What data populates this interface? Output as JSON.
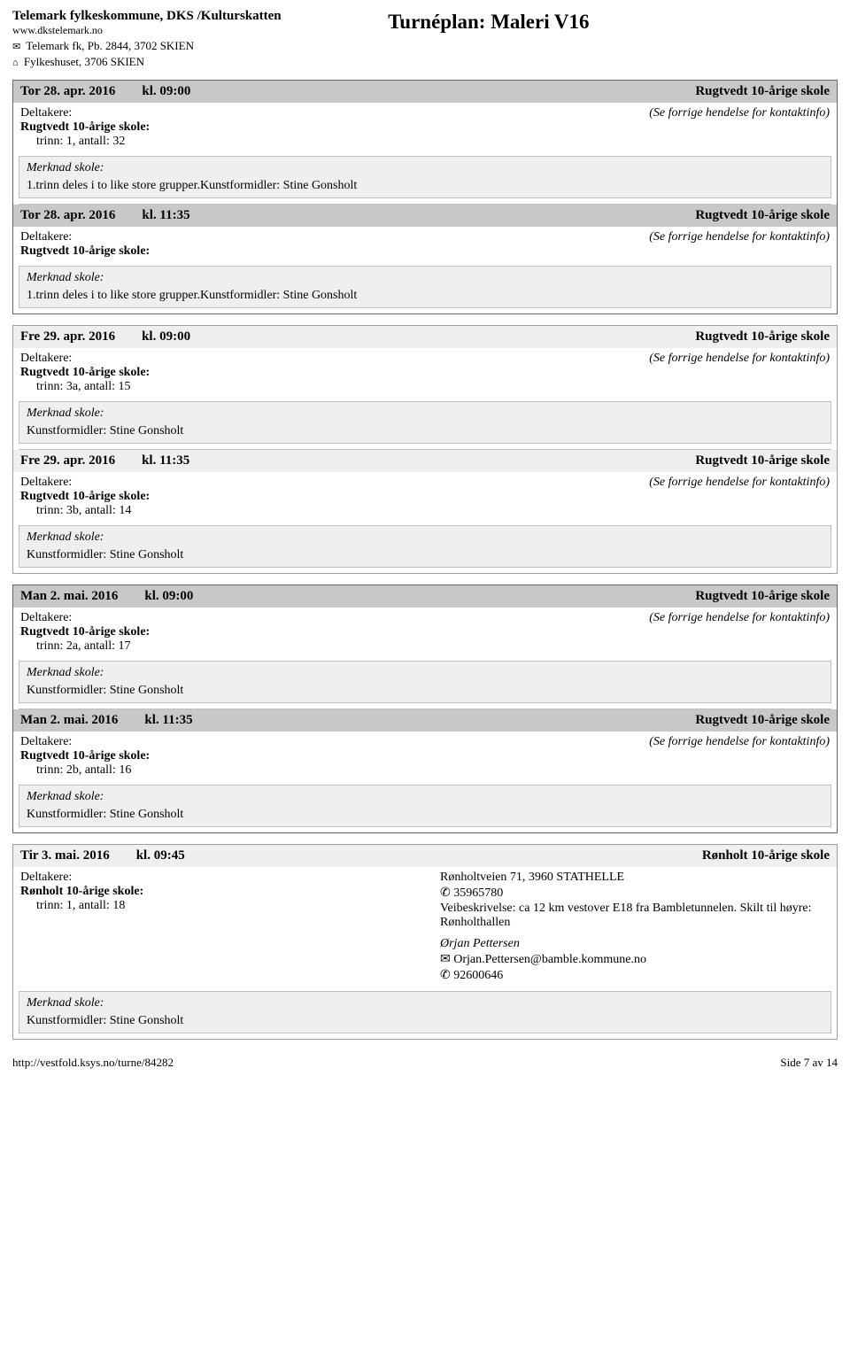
{
  "header": {
    "org_name": "Telemark fylkeskommune, DKS /Kulturskatten",
    "url": "www.dkstelemark.no",
    "addr1_icon": "✉",
    "addr1": "Telemark fk, Pb. 2844, 3702 SKIEN",
    "addr2_icon": "⌂",
    "addr2": "Fylkeshuset, 3706 SKIEN",
    "page_title": "Turnéplan: Maleri V16"
  },
  "labels": {
    "deltakere": "Deltakere:",
    "merknad": "Merknad skole:",
    "see_prev": "(Se forrige hendelse for kontaktinfo)"
  },
  "groups": [
    {
      "border": "dark",
      "events": [
        {
          "header_style": "dark",
          "date": "Tor 28. apr. 2016",
          "time": "kl. 09:00",
          "venue": "Rugtvedt 10-årige skole",
          "school": "Rugtvedt 10-årige skole:",
          "trinn": "trinn: 1, antall: 32",
          "right_type": "see_prev",
          "merknad_body": "1.trinn deles i to like store grupper.Kunstformidler: Stine Gonsholt"
        },
        {
          "header_style": "dark",
          "date": "Tor 28. apr. 2016",
          "time": "kl. 11:35",
          "venue": "Rugtvedt 10-årige skole",
          "school": "Rugtvedt 10-årige skole:",
          "trinn": "",
          "right_type": "see_prev",
          "merknad_body": "1.trinn deles i to like store grupper.Kunstformidler: Stine Gonsholt"
        }
      ]
    },
    {
      "border": "light",
      "events": [
        {
          "header_style": "light",
          "date": "Fre 29. apr. 2016",
          "time": "kl. 09:00",
          "venue": "Rugtvedt 10-årige skole",
          "school": "Rugtvedt 10-årige skole:",
          "trinn": "trinn: 3a, antall: 15",
          "right_type": "see_prev",
          "merknad_body": "Kunstformidler: Stine Gonsholt"
        },
        {
          "header_style": "light",
          "date": "Fre 29. apr. 2016",
          "time": "kl. 11:35",
          "venue": "Rugtvedt 10-årige skole",
          "school": "Rugtvedt 10-årige skole:",
          "trinn": "trinn: 3b, antall: 14",
          "right_type": "see_prev",
          "merknad_body": "Kunstformidler: Stine Gonsholt"
        }
      ]
    },
    {
      "border": "dark",
      "events": [
        {
          "header_style": "dark",
          "date": "Man 2. mai. 2016",
          "time": "kl. 09:00",
          "venue": "Rugtvedt 10-årige skole",
          "school": "Rugtvedt 10-årige skole:",
          "trinn": "trinn: 2a, antall: 17",
          "right_type": "see_prev",
          "merknad_body": "Kunstformidler: Stine Gonsholt"
        },
        {
          "header_style": "dark",
          "date": "Man 2. mai. 2016",
          "time": "kl. 11:35",
          "venue": "Rugtvedt 10-årige skole",
          "school": "Rugtvedt 10-årige skole:",
          "trinn": "trinn: 2b, antall: 16",
          "right_type": "see_prev",
          "merknad_body": "Kunstformidler: Stine Gonsholt"
        }
      ]
    },
    {
      "border": "light",
      "events": [
        {
          "header_style": "light",
          "date": "Tir 3. mai. 2016",
          "time": "kl. 09:45",
          "venue": "Rønholt 10-årige skole",
          "school": "Rønholt 10-årige skole:",
          "trinn": "trinn: 1, antall: 18",
          "right_type": "contact",
          "contact": {
            "address": "Rønholtveien 71, 3960 STATHELLE",
            "phone_icon": "✆",
            "phone1": "35965780",
            "directions": "Veibeskrivelse: ca 12 km vestover E18 fra Bambletunnelen. Skilt til høyre: Rønholthallen",
            "person": "Ørjan Pettersen",
            "email_icon": "✉",
            "email": "Orjan.Pettersen@bamble.kommune.no",
            "phone2_icon": "✆",
            "phone2": "92600646"
          },
          "merknad_body": "Kunstformidler: Stine Gonsholt"
        }
      ]
    }
  ],
  "footer": {
    "url": "http://vestfold.ksys.no/turne/84282",
    "page": "Side 7 av 14"
  }
}
